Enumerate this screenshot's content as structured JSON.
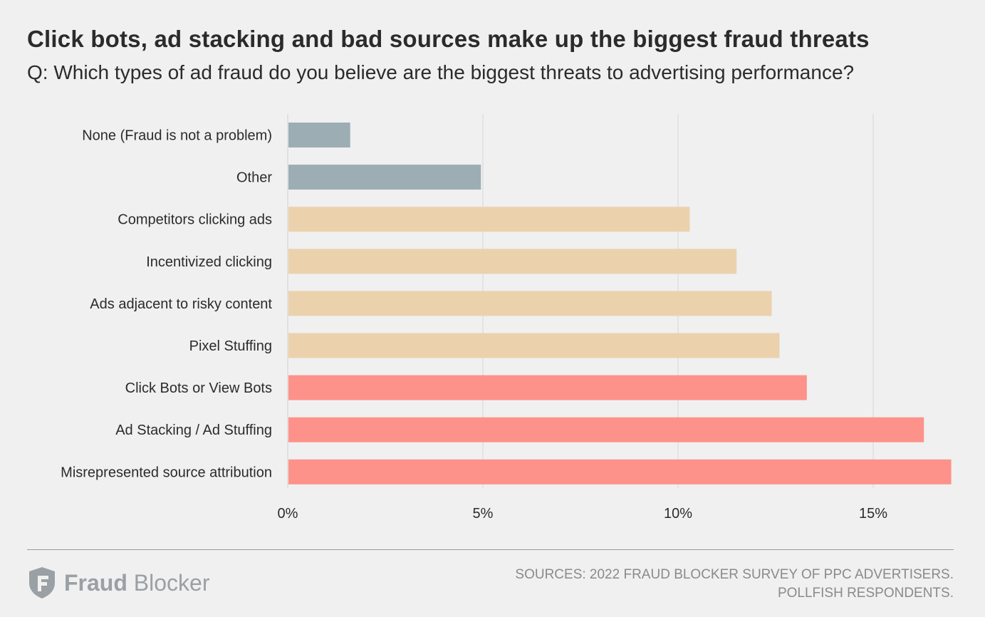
{
  "title": "Click bots, ad stacking and bad sources make up the biggest fraud threats",
  "subtitle": "Q: Which types of ad fraud do you believe are the biggest threats to advertising performance?",
  "chart_data": {
    "type": "bar",
    "orientation": "horizontal",
    "categories": [
      "None (Fraud is not a problem)",
      "Other",
      "Competitors clicking ads",
      "Incentivized clicking",
      "Ads adjacent to risky content",
      "Pixel Stuffing",
      "Click Bots or View Bots",
      "Ad Stacking / Ad Stuffing",
      "Misrepresented source attribution"
    ],
    "values": [
      1.6,
      4.95,
      10.3,
      11.5,
      12.4,
      12.6,
      13.3,
      16.3,
      17.0
    ],
    "colors": [
      "#9dadb4",
      "#9dadb4",
      "#ebd2ad",
      "#ebd2ad",
      "#ebd2ad",
      "#ebd2ad",
      "#fd928b",
      "#fd928b",
      "#fd928b"
    ],
    "xticks": [
      0,
      5,
      10,
      15
    ],
    "xtick_labels": [
      "0%",
      "5%",
      "10%",
      "15%"
    ],
    "xlim": [
      0,
      17
    ],
    "xlabel": "",
    "ylabel": "",
    "grid": true
  },
  "logo": {
    "name_bold": "Fraud",
    "name_light": "Blocker"
  },
  "sources": {
    "line1": "SOURCES: 2022 FRAUD BLOCKER SURVEY OF PPC ADVERTISERS.",
    "line2": "POLLFISH RESPONDENTS."
  }
}
